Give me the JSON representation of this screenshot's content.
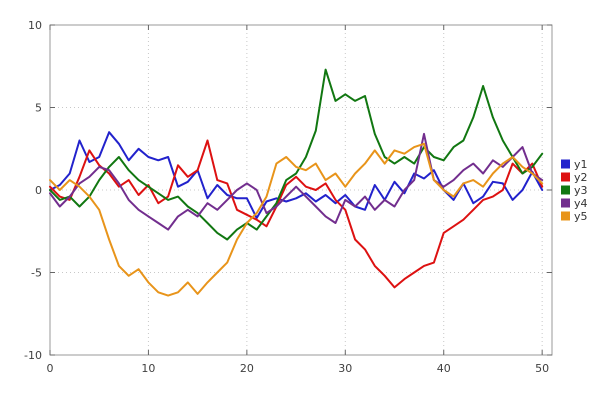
{
  "chart_data": {
    "type": "line",
    "title": "",
    "xlabel": "",
    "ylabel": "",
    "xlim": [
      0,
      51
    ],
    "ylim": [
      -10,
      10
    ],
    "xticks": [
      0,
      10,
      20,
      30,
      40,
      50
    ],
    "yticks": [
      -10,
      -5,
      0,
      5,
      10
    ],
    "grid": "dotted",
    "legend_position": "right-outside-middle",
    "x": [
      0,
      1,
      2,
      3,
      4,
      5,
      6,
      7,
      8,
      9,
      10,
      11,
      12,
      13,
      14,
      15,
      16,
      17,
      18,
      19,
      20,
      21,
      22,
      23,
      24,
      25,
      26,
      27,
      28,
      29,
      30,
      31,
      32,
      33,
      34,
      35,
      36,
      37,
      38,
      39,
      40,
      41,
      42,
      43,
      44,
      45,
      46,
      47,
      48,
      49,
      50
    ],
    "series": [
      {
        "name": "y1",
        "color": "#2222cc",
        "values": [
          0.0,
          0.3,
          1.0,
          3.0,
          1.7,
          2.0,
          3.5,
          2.8,
          1.8,
          2.5,
          2.0,
          1.8,
          2.0,
          0.2,
          0.5,
          1.2,
          -0.5,
          0.3,
          -0.3,
          -0.5,
          -0.5,
          -1.7,
          -0.7,
          -0.5,
          -0.7,
          -0.5,
          -0.2,
          -0.7,
          -0.3,
          -0.8,
          -0.3,
          -1.0,
          -1.2,
          0.3,
          -0.6,
          0.5,
          -0.2,
          1.0,
          0.7,
          1.2,
          0.0,
          -0.6,
          0.4,
          -0.8,
          -0.4,
          0.5,
          0.4,
          -0.6,
          0.0,
          1.1,
          0.0
        ]
      },
      {
        "name": "y2",
        "color": "#dd1111",
        "values": [
          0.2,
          -0.4,
          -0.6,
          0.8,
          2.4,
          1.5,
          1.0,
          0.2,
          0.6,
          -0.3,
          0.3,
          -0.8,
          -0.4,
          1.5,
          0.8,
          1.2,
          3.0,
          0.6,
          0.4,
          -1.2,
          -1.5,
          -1.8,
          -2.2,
          -1.0,
          0.3,
          0.8,
          0.2,
          0.0,
          0.4,
          -0.6,
          -1.2,
          -3.0,
          -3.6,
          -4.6,
          -5.2,
          -5.9,
          -5.4,
          -5.0,
          -4.6,
          -4.4,
          -2.6,
          -2.2,
          -1.8,
          -1.2,
          -0.6,
          -0.4,
          0.0,
          1.6,
          1.0,
          1.6,
          0.2
        ]
      },
      {
        "name": "y3",
        "color": "#117711",
        "values": [
          0.0,
          -0.6,
          -0.4,
          -1.0,
          -0.4,
          0.6,
          1.4,
          2.0,
          1.2,
          0.6,
          0.2,
          -0.2,
          -0.6,
          -0.4,
          -1.0,
          -1.4,
          -2.0,
          -2.6,
          -3.0,
          -2.4,
          -2.0,
          -2.4,
          -1.6,
          -0.8,
          0.6,
          1.0,
          2.0,
          3.6,
          7.3,
          5.4,
          5.8,
          5.4,
          5.7,
          3.4,
          2.0,
          1.6,
          2.0,
          1.6,
          2.6,
          2.0,
          1.8,
          2.6,
          3.0,
          4.4,
          6.3,
          4.4,
          3.0,
          2.0,
          1.0,
          1.4,
          2.2
        ]
      },
      {
        "name": "y4",
        "color": "#722e8e",
        "values": [
          -0.2,
          -1.0,
          -0.4,
          0.4,
          0.8,
          1.4,
          1.2,
          0.4,
          -0.6,
          -1.2,
          -1.6,
          -2.0,
          -2.4,
          -1.6,
          -1.2,
          -1.6,
          -0.8,
          -1.2,
          -0.6,
          0.0,
          0.4,
          0.0,
          -1.4,
          -1.0,
          -0.4,
          0.2,
          -0.4,
          -1.0,
          -1.6,
          -2.0,
          -0.6,
          -1.0,
          -0.4,
          -1.2,
          -0.6,
          -1.0,
          0.0,
          0.6,
          3.4,
          0.6,
          0.2,
          0.6,
          1.2,
          1.6,
          1.0,
          1.8,
          1.4,
          2.0,
          2.6,
          1.0,
          0.6
        ]
      },
      {
        "name": "y5",
        "color": "#e8941a",
        "values": [
          0.6,
          0.0,
          0.6,
          0.2,
          -0.4,
          -1.2,
          -3.0,
          -4.6,
          -5.2,
          -4.8,
          -5.6,
          -6.2,
          -6.4,
          -6.2,
          -5.6,
          -6.3,
          -5.6,
          -5.0,
          -4.4,
          -3.0,
          -2.0,
          -1.4,
          -0.4,
          1.6,
          2.0,
          1.4,
          1.2,
          1.6,
          0.6,
          1.0,
          0.2,
          1.0,
          1.6,
          2.4,
          1.6,
          2.4,
          2.2,
          2.6,
          2.8,
          0.6,
          0.0,
          -0.4,
          0.4,
          0.6,
          0.2,
          1.0,
          1.6,
          2.0,
          1.4,
          1.0,
          0.4
        ]
      }
    ]
  },
  "colors": {
    "background": "#ffffff",
    "grid": "#c8c8c8",
    "axis_box": "#999999",
    "tick": "#666666",
    "tick_label": "#404040",
    "legend_label": "#333333"
  }
}
